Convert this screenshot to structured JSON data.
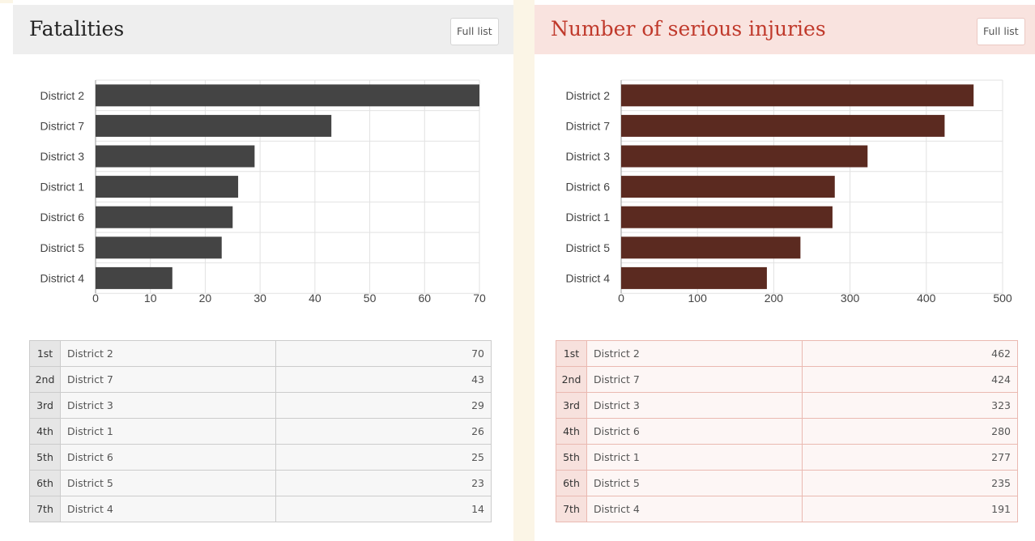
{
  "colors": {
    "fatalities_bar": "#444444",
    "injuries_bar": "#5b2a20",
    "injuries_accent": "#c0392b",
    "gridline": "#e2e2e2"
  },
  "panels": [
    {
      "title": "Fatalities",
      "full_list_label": "Full list",
      "chart_data": {
        "type": "bar",
        "orientation": "horizontal",
        "categories": [
          "District 2",
          "District 7",
          "District 3",
          "District 1",
          "District 6",
          "District 5",
          "District 4"
        ],
        "values": [
          70,
          43,
          29,
          26,
          25,
          23,
          14
        ],
        "xlim": [
          0,
          70
        ],
        "xticks": [
          0,
          10,
          20,
          30,
          40,
          50,
          60,
          70
        ],
        "grid": true
      },
      "rows": [
        {
          "rank": "1st",
          "name": "District 2",
          "value": "70"
        },
        {
          "rank": "2nd",
          "name": "District 7",
          "value": "43"
        },
        {
          "rank": "3rd",
          "name": "District 3",
          "value": "29"
        },
        {
          "rank": "4th",
          "name": "District 1",
          "value": "26"
        },
        {
          "rank": "5th",
          "name": "District 6",
          "value": "25"
        },
        {
          "rank": "6th",
          "name": "District 5",
          "value": "23"
        },
        {
          "rank": "7th",
          "name": "District 4",
          "value": "14"
        }
      ]
    },
    {
      "title": "Number of serious injuries",
      "full_list_label": "Full list",
      "chart_data": {
        "type": "bar",
        "orientation": "horizontal",
        "categories": [
          "District 2",
          "District 7",
          "District 3",
          "District 6",
          "District 1",
          "District 5",
          "District 4"
        ],
        "values": [
          462,
          424,
          323,
          280,
          277,
          235,
          191
        ],
        "xlim": [
          0,
          500
        ],
        "xticks": [
          0,
          100,
          200,
          300,
          400,
          500
        ],
        "grid": true
      },
      "rows": [
        {
          "rank": "1st",
          "name": "District 2",
          "value": "462"
        },
        {
          "rank": "2nd",
          "name": "District 7",
          "value": "424"
        },
        {
          "rank": "3rd",
          "name": "District 3",
          "value": "323"
        },
        {
          "rank": "4th",
          "name": "District 6",
          "value": "280"
        },
        {
          "rank": "5th",
          "name": "District 1",
          "value": "277"
        },
        {
          "rank": "6th",
          "name": "District 5",
          "value": "235"
        },
        {
          "rank": "7th",
          "name": "District 4",
          "value": "191"
        }
      ]
    }
  ]
}
